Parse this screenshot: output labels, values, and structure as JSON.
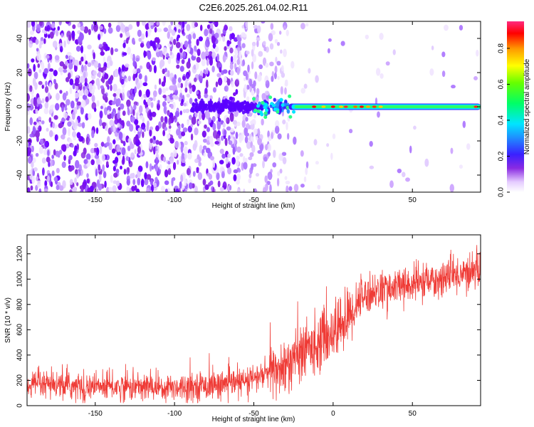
{
  "title": "C2E6.2025.261.04.02.R11",
  "chart_data": [
    {
      "type": "heatmap",
      "xlabel": "Height of straight line (km)",
      "ylabel": "Frequency (Hz)",
      "xlim": [
        -193,
        93
      ],
      "ylim": [
        -50,
        50
      ],
      "xticks": [
        -150,
        -100,
        -50,
        0,
        50
      ],
      "yticks": [
        -40,
        -20,
        0,
        20,
        40
      ],
      "colorbar": {
        "label": "Normalized spectral amplitude",
        "range": [
          0,
          0.95
        ],
        "ticks": [
          0.0,
          0.2,
          0.4,
          0.6,
          0.8
        ]
      },
      "features": [
        {
          "x_range": [
            -193,
            -28
          ],
          "description": "broadband low-amplitude noise"
        },
        {
          "x_range": [
            -55,
            -28
          ],
          "freq_hz": 0,
          "amplitude": 0.3
        },
        {
          "x_range": [
            -28,
            93
          ],
          "freq_hz": 0,
          "amplitude": 0.9
        }
      ]
    },
    {
      "type": "line",
      "xlabel": "Height of straight line (km)",
      "ylabel": "SNR (10 * v/v)",
      "xlim": [
        -193,
        93
      ],
      "ylim": [
        0,
        1350
      ],
      "xticks": [
        -150,
        -100,
        -50,
        0,
        50
      ],
      "yticks": [
        0,
        200,
        400,
        600,
        800,
        1000,
        1200
      ],
      "series": [
        {
          "name": "SNR",
          "color": "#ef3b36",
          "x": [
            -193,
            -150,
            -100,
            -75,
            -55,
            -40,
            -30,
            -20,
            -10,
            0,
            10,
            15,
            20,
            40,
            60,
            80,
            93
          ],
          "y": [
            160,
            150,
            150,
            160,
            190,
            260,
            310,
            420,
            500,
            580,
            700,
            820,
            880,
            940,
            980,
            1040,
            1080
          ]
        }
      ]
    }
  ]
}
